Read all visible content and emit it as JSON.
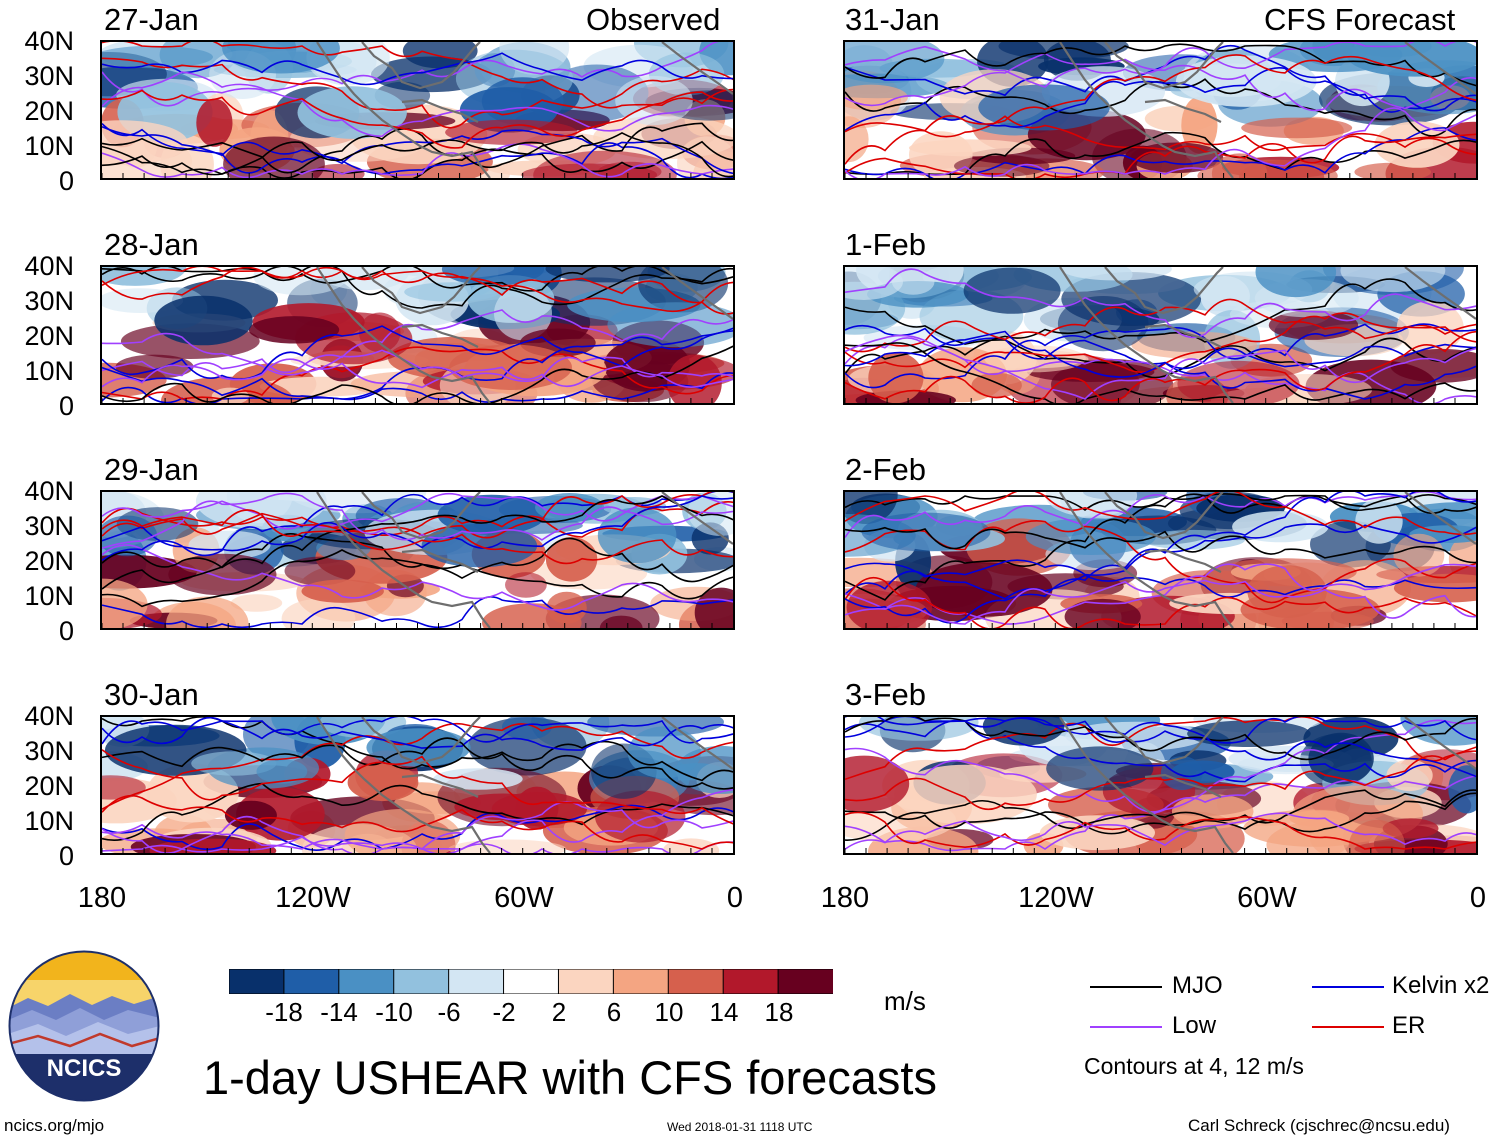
{
  "figure_title": "1-day USHEAR with CFS forecasts",
  "headers": {
    "observed": "Observed",
    "forecast": "CFS Forecast"
  },
  "observed_panels": [
    {
      "date": "27-Jan"
    },
    {
      "date": "28-Jan"
    },
    {
      "date": "29-Jan"
    },
    {
      "date": "30-Jan"
    }
  ],
  "forecast_panels": [
    {
      "date": "31-Jan"
    },
    {
      "date": "1-Feb"
    },
    {
      "date": "2-Feb"
    },
    {
      "date": "3-Feb"
    }
  ],
  "lat_labels": [
    "40N",
    "30N",
    "20N",
    "10N",
    "0"
  ],
  "lon_labels": [
    "180",
    "120W",
    "60W",
    "0"
  ],
  "colorbar": {
    "units": "m/s",
    "labels": [
      "-18",
      "-14",
      "-10",
      "-6",
      "-2",
      "2",
      "6",
      "10",
      "14",
      "18"
    ],
    "colors": [
      "#08306b",
      "#1f5ea8",
      "#4a90c4",
      "#92c1de",
      "#d3e6f3",
      "#ffffff",
      "#fbd5c0",
      "#f4a582",
      "#d6604d",
      "#b2182b",
      "#67001f"
    ]
  },
  "legend": {
    "items": [
      {
        "label": "MJO",
        "color": "#000000"
      },
      {
        "label": "Kelvin x2",
        "color": "#0000dd"
      },
      {
        "label": "Low",
        "color": "#a040ff"
      },
      {
        "label": "ER",
        "color": "#dd0000"
      }
    ],
    "note": "Contours at 4, 12 m/s"
  },
  "logo": {
    "text": "NCICS"
  },
  "footer": {
    "left": "ncics.org/mjo",
    "center": "Wed 2018-01-31 1118 UTC",
    "right": "Carl Schreck (cjschrec@ncsu.edu)"
  }
}
